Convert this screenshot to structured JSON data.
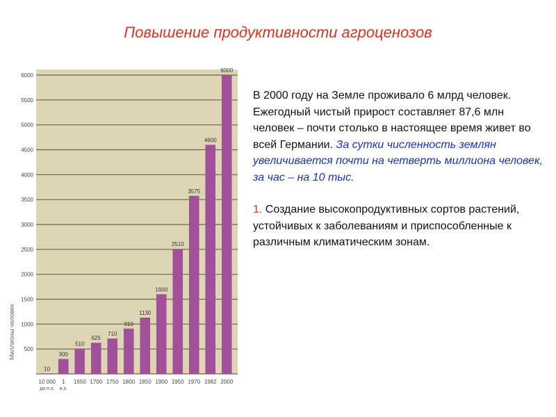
{
  "slide": {
    "title": "Повышение продуктивности агроценозов",
    "paragraph_plain": "В 2000 году на Земле проживало 6 млрд человек. Ежегодный чистый прирост составляет 87,6 млн человек – почти столько в настоящее время живет во всей Германии.",
    "paragraph_highlight": "За сутки численность землян увеличивается почти на четверть миллиона человек, за час – на 10 тыс.",
    "list_number": "1.",
    "list_text": "Создание высокопродуктивных сортов растений, устойчивых к заболеваниям и приспособленные к различным климатическим зонам."
  },
  "colors": {
    "title": "#e0301e",
    "highlight": "#1a2fc4",
    "bar": "#a1509a",
    "chart_bg": "#ded5b4"
  },
  "chart_data": {
    "type": "bar",
    "ylabel": "Миллионы человек",
    "ylim": [
      0,
      6000
    ],
    "yticks": [
      500,
      1000,
      1500,
      2000,
      2500,
      3000,
      3500,
      4000,
      4500,
      5000,
      5500,
      6000
    ],
    "grid": true,
    "categories": [
      "10 000 до н.э.",
      "1 н.э.",
      "1650",
      "1700",
      "1750",
      "1800",
      "1850",
      "1900",
      "1950",
      "1970",
      "1982",
      "2000"
    ],
    "x_line1": [
      "10 000",
      "1",
      "1650",
      "1700",
      "1750",
      "1800",
      "1850",
      "1900",
      "1950",
      "1970",
      "1982",
      "2000"
    ],
    "x_line2": [
      "до н.э.",
      "н.э.",
      "",
      "",
      "",
      "",
      "",
      "",
      "",
      "",
      "",
      ""
    ],
    "values": [
      10,
      300,
      510,
      625,
      710,
      910,
      1130,
      1600,
      2510,
      3575,
      4600,
      6000
    ],
    "value_labels": [
      "10",
      "300",
      "510",
      "625",
      "710",
      "910",
      "1130",
      "1600",
      "2510",
      "3575",
      "4600",
      "6000"
    ]
  }
}
